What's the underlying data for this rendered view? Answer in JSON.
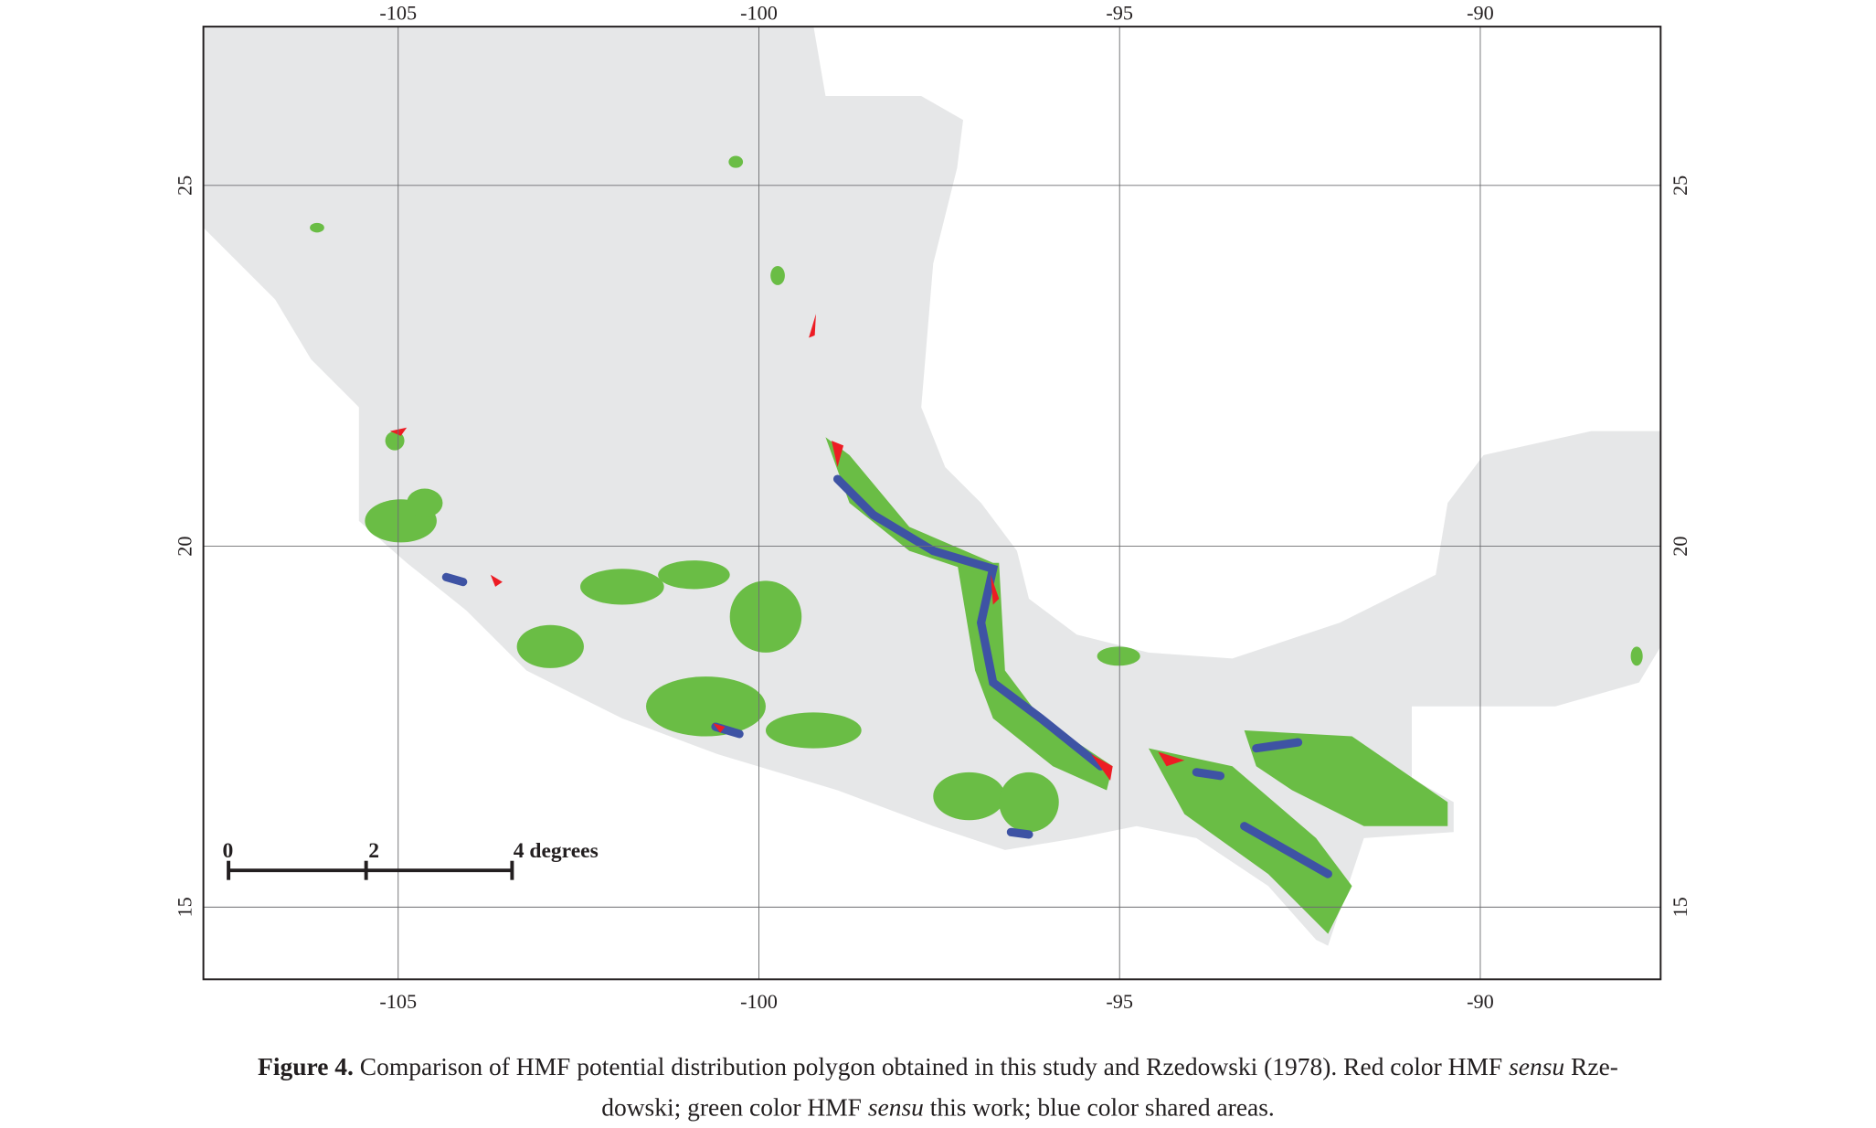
{
  "map": {
    "xlim": [
      -107.7,
      -87.5
    ],
    "ylim": [
      14,
      27.2
    ],
    "xticks": [
      -105,
      -100,
      -95,
      -90
    ],
    "yticks": [
      15,
      20,
      25
    ],
    "scale_bar": {
      "labels": [
        "0",
        "2",
        "4 degrees"
      ]
    },
    "caption": {
      "label": "Figure 4.",
      "text_1": " Comparison of HMF potential distribution polygon obtained in this study and Rzedowski (1978). Red color HMF ",
      "em_1": "sensu",
      "text_2": " Rze-",
      "text_3": "dowski; green color HMF ",
      "em_2": "sensu",
      "text_4": " this work; blue color shared areas."
    }
  }
}
